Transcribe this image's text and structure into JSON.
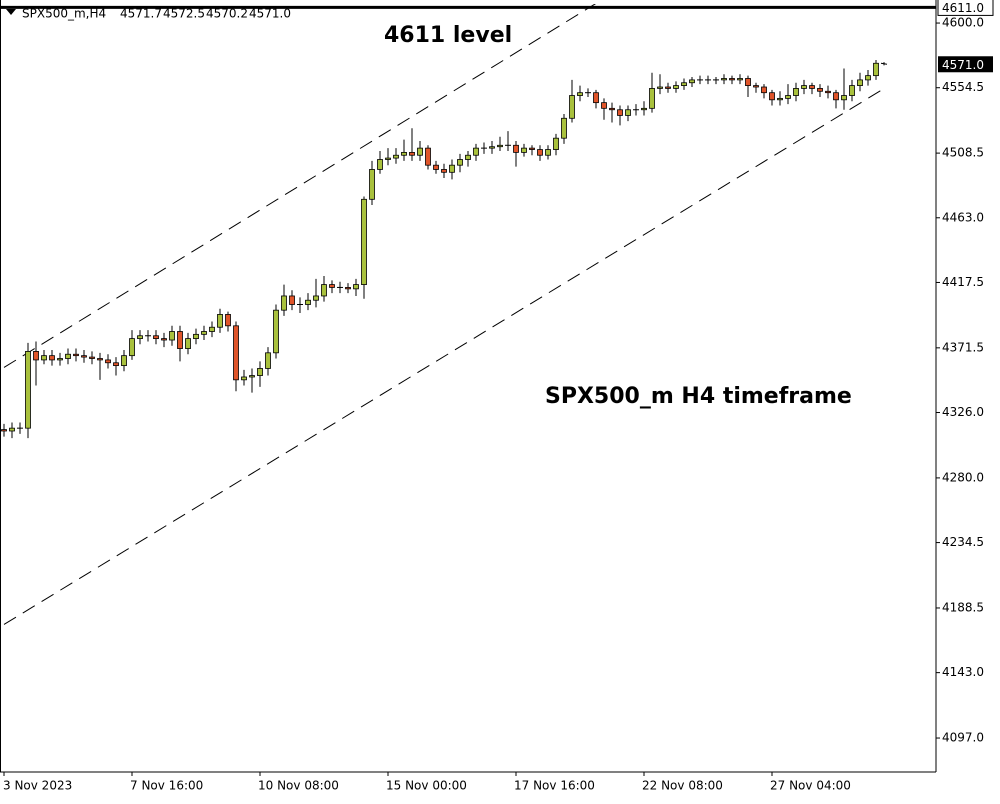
{
  "chart_data": {
    "type": "candlestick",
    "symbol": "SPX500_m,H4",
    "ohlc_labels": [
      "4571.7",
      "4572.5",
      "4570.2",
      "4571.0"
    ],
    "annotations": [
      "4611 level",
      "SPX500_m H4 timeframe"
    ],
    "up_color": "#a9c13d",
    "down_color": "#e0552a",
    "categories": [
      "3 Nov 2023",
      null,
      null,
      null,
      null,
      null,
      null,
      null,
      null,
      null,
      null,
      null,
      null,
      null,
      null,
      null,
      "7 Nov 16:00",
      null,
      null,
      null,
      null,
      null,
      null,
      null,
      null,
      null,
      null,
      null,
      null,
      null,
      null,
      null,
      "10 Nov 08:00",
      null,
      null,
      null,
      null,
      null,
      null,
      null,
      null,
      null,
      null,
      null,
      null,
      null,
      null,
      null,
      "15 Nov 00:00",
      null,
      null,
      null,
      null,
      null,
      null,
      null,
      null,
      null,
      null,
      null,
      null,
      null,
      null,
      null,
      "17 Nov 16:00",
      null,
      null,
      null,
      null,
      null,
      null,
      null,
      null,
      null,
      null,
      null,
      null,
      null,
      null,
      null,
      "22 Nov 08:00",
      null,
      null,
      null,
      null,
      null,
      null,
      null,
      null,
      null,
      null,
      null,
      null,
      null,
      null,
      null,
      "27 Nov 04:00",
      null,
      null,
      null,
      null,
      null,
      null,
      null,
      null,
      null,
      null,
      null,
      null,
      null,
      null
    ],
    "open": [
      4314,
      4313,
      4315,
      4315,
      4369,
      4363,
      4366,
      4363,
      4364,
      4367,
      4366,
      4365,
      4364,
      4363,
      4361,
      4359,
      4366,
      4378,
      4380,
      4380,
      4378,
      4377,
      4383,
      4371,
      4378,
      4381,
      4383,
      4386,
      4395,
      4387,
      4349,
      4351,
      4352,
      4357,
      4368,
      4398,
      4408,
      4402,
      4402,
      4405,
      4408,
      4416,
      4414,
      4414,
      4413,
      4416,
      4476,
      4497,
      4504,
      4505,
      4507,
      4509,
      4507,
      4512,
      4500,
      4497,
      4495,
      4500,
      4504,
      4507,
      4512,
      4512,
      4513,
      4514,
      4514,
      4509,
      4512,
      4511,
      4507,
      4511,
      4519,
      4533,
      4549,
      4551,
      4551,
      4544,
      4540,
      4539,
      4535,
      4539,
      4539,
      4540,
      4554,
      4555,
      4554,
      4556,
      4558,
      4560,
      4560,
      4560,
      4560,
      4561,
      4560,
      4561,
      4556,
      4555,
      4551,
      4546,
      4547,
      4549,
      4554,
      4556,
      4554,
      4552,
      4551,
      4546,
      4549,
      4556,
      4560,
      4563,
      4571.7
    ],
    "high": [
      4318,
      4319,
      4319,
      4375,
      4376,
      4370,
      4370,
      4368,
      4371,
      4371,
      4370,
      4369,
      4368,
      4367,
      4365,
      4370,
      4384,
      4384,
      4384,
      4384,
      4382,
      4387,
      4387,
      4382,
      4385,
      4387,
      4390,
      4399,
      4397,
      4390,
      4356,
      4357,
      4362,
      4372,
      4402,
      4416,
      4412,
      4407,
      4410,
      4420,
      4422,
      4419,
      4418,
      4417,
      4420,
      4478,
      4503,
      4510,
      4512,
      4512,
      4518,
      4526,
      4517,
      4514,
      4503,
      4501,
      4504,
      4508,
      4510,
      4515,
      4516,
      4517,
      4520,
      4524,
      4517,
      4515,
      4514,
      4514,
      4514,
      4522,
      4536,
      4560,
      4556,
      4554,
      4553,
      4547,
      4544,
      4542,
      4542,
      4543,
      4545,
      4565,
      4564,
      4558,
      4559,
      4561,
      4562,
      4563,
      4563,
      4562,
      4564,
      4563,
      4564,
      4563,
      4558,
      4557,
      4553,
      4552,
      4557,
      4558,
      4560,
      4558,
      4557,
      4556,
      4553,
      4568,
      4560,
      4565,
      4567,
      4574,
      4572.5
    ],
    "low": [
      4309,
      4308,
      4311,
      4308,
      4345,
      4360,
      4359,
      4359,
      4360,
      4362,
      4361,
      4360,
      4349,
      4357,
      4352,
      4355,
      4363,
      4374,
      4376,
      4374,
      4372,
      4373,
      4362,
      4367,
      4374,
      4377,
      4379,
      4382,
      4383,
      4341,
      4345,
      4340,
      4344,
      4352,
      4364,
      4394,
      4398,
      4396,
      4398,
      4400,
      4404,
      4410,
      4410,
      4410,
      4408,
      4406,
      4472,
      4494,
      4500,
      4501,
      4503,
      4503,
      4503,
      4497,
      4494,
      4491,
      4490,
      4495,
      4499,
      4503,
      4508,
      4508,
      4510,
      4510,
      4499,
      4506,
      4507,
      4503,
      4504,
      4507,
      4515,
      4530,
      4545,
      4548,
      4540,
      4532,
      4530,
      4528,
      4531,
      4535,
      4535,
      4537,
      4550,
      4551,
      4551,
      4553,
      4555,
      4557,
      4557,
      4557,
      4557,
      4557,
      4557,
      4548,
      4551,
      4547,
      4542,
      4542,
      4543,
      4545,
      4550,
      4550,
      4548,
      4547,
      4540,
      4539,
      4545,
      4552,
      4556,
      4560,
      4570.2
    ],
    "close": [
      4313,
      4315,
      4315,
      4369,
      4363,
      4366,
      4363,
      4364,
      4367,
      4366,
      4365,
      4364,
      4363,
      4361,
      4359,
      4366,
      4378,
      4380,
      4380,
      4378,
      4377,
      4383,
      4371,
      4378,
      4381,
      4383,
      4386,
      4395,
      4387,
      4349,
      4351,
      4352,
      4357,
      4368,
      4398,
      4408,
      4402,
      4402,
      4405,
      4408,
      4416,
      4414,
      4414,
      4413,
      4416,
      4476,
      4497,
      4504,
      4505,
      4507,
      4509,
      4507,
      4512,
      4500,
      4497,
      4495,
      4500,
      4504,
      4507,
      4512,
      4512,
      4513,
      4514,
      4514,
      4509,
      4512,
      4511,
      4507,
      4511,
      4519,
      4533,
      4549,
      4551,
      4551,
      4544,
      4540,
      4539,
      4535,
      4539,
      4539,
      4540,
      4554,
      4555,
      4554,
      4556,
      4558,
      4560,
      4560,
      4560,
      4560,
      4561,
      4560,
      4561,
      4556,
      4555,
      4551,
      4546,
      4547,
      4549,
      4554,
      4556,
      4554,
      4552,
      4551,
      4546,
      4549,
      4556,
      4560,
      4563,
      4571.7,
      4571
    ],
    "ylim": [
      4073.1,
      4613.4
    ],
    "yticks": [
      {
        "value": 4097,
        "label": "4097.0"
      },
      {
        "value": 4143,
        "label": "4143.0"
      },
      {
        "value": 4188.5,
        "label": "4188.5"
      },
      {
        "value": 4234.5,
        "label": "4234.5"
      },
      {
        "value": 4280,
        "label": "4280.0"
      },
      {
        "value": 4326,
        "label": "4326.0"
      },
      {
        "value": 4371.5,
        "label": "4371.5"
      },
      {
        "value": 4417.5,
        "label": "4417.5"
      },
      {
        "value": 4463,
        "label": "4463.0"
      },
      {
        "value": 4508.5,
        "label": "4508.5"
      },
      {
        "value": 4554.5,
        "label": "4554.5"
      },
      {
        "value": 4600,
        "label": "4600.0"
      }
    ],
    "hline": {
      "value": 4611,
      "label": "4611.0"
    },
    "current_price": {
      "value": 4571,
      "label": "4571.0"
    },
    "trendlines": [
      {
        "x": [
          0,
          110
        ],
        "y": [
          4357.7,
          4738.4
        ]
      },
      {
        "x": [
          0,
          110
        ],
        "y": [
          4176.9,
          4553.9
        ]
      }
    ]
  }
}
